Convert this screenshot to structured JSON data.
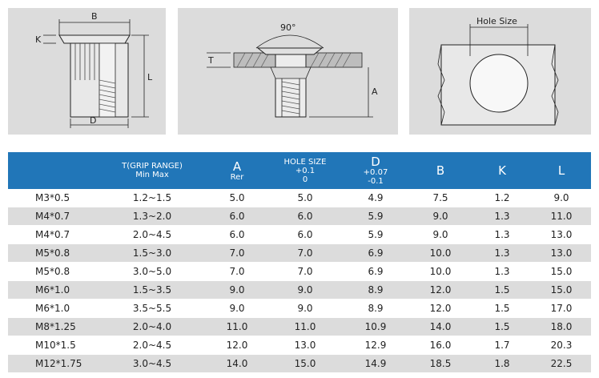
{
  "drawings": {
    "nut_labels": {
      "b": "B",
      "k": "K",
      "d": "D",
      "l": "L"
    },
    "section_labels": {
      "angle": "90°",
      "t": "T",
      "a": "A"
    },
    "hole_label": "Hole Size"
  },
  "table": {
    "headers": [
      {
        "line1": "",
        "line2": ""
      },
      {
        "line1": "T(GRIP RANGE)",
        "line2": "Min Max"
      },
      {
        "line1": "A",
        "line2": "Rer"
      },
      {
        "line1": "HOLE SIZE",
        "line2": "+0.1",
        "line3": "0"
      },
      {
        "line1": "D",
        "line2": "+0.07",
        "line3": "-0.1"
      },
      {
        "line1": "B",
        "line2": ""
      },
      {
        "line1": "K",
        "line2": ""
      },
      {
        "line1": "L",
        "line2": ""
      }
    ],
    "rows": [
      [
        "M3*0.5",
        "1.2~1.5",
        "5.0",
        "5.0",
        "4.9",
        "7.5",
        "1.2",
        "9.0"
      ],
      [
        "M4*0.7",
        "1.3~2.0",
        "6.0",
        "6.0",
        "5.9",
        "9.0",
        "1.3",
        "11.0"
      ],
      [
        "M4*0.7",
        "2.0~4.5",
        "6.0",
        "6.0",
        "5.9",
        "9.0",
        "1.3",
        "13.0"
      ],
      [
        "M5*0.8",
        "1.5~3.0",
        "7.0",
        "7.0",
        "6.9",
        "10.0",
        "1.3",
        "13.0"
      ],
      [
        "M5*0.8",
        "3.0~5.0",
        "7.0",
        "7.0",
        "6.9",
        "10.0",
        "1.3",
        "15.0"
      ],
      [
        "M6*1.0",
        "1.5~3.5",
        "9.0",
        "9.0",
        "8.9",
        "12.0",
        "1.5",
        "15.0"
      ],
      [
        "M6*1.0",
        "3.5~5.5",
        "9.0",
        "9.0",
        "8.9",
        "12.0",
        "1.5",
        "17.0"
      ],
      [
        "M8*1.25",
        "2.0~4.0",
        "11.0",
        "11.0",
        "10.9",
        "14.0",
        "1.5",
        "18.0"
      ],
      [
        "M10*1.5",
        "2.0~4.5",
        "12.0",
        "13.0",
        "12.9",
        "16.0",
        "1.7",
        "20.3"
      ],
      [
        "M12*1.75",
        "3.0~4.5",
        "14.0",
        "15.0",
        "14.9",
        "18.5",
        "1.8",
        "22.5"
      ]
    ]
  }
}
